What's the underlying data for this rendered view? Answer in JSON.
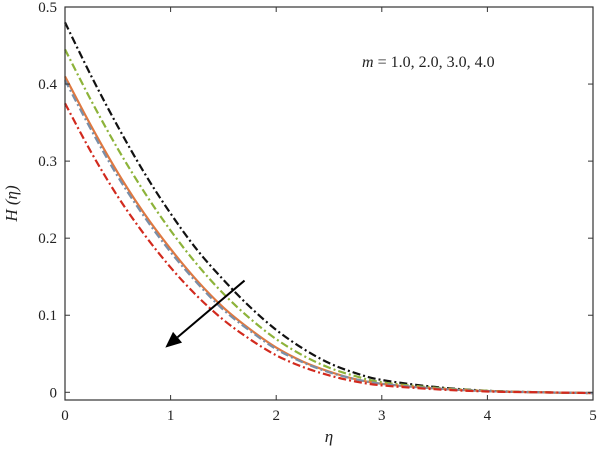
{
  "chart_data": {
    "type": "line",
    "title": "",
    "xlabel": "η",
    "ylabel": "H (η)",
    "xlim": [
      0,
      5
    ],
    "ylim": [
      -0.01,
      0.5
    ],
    "x_ticks": [
      0,
      1,
      2,
      3,
      4,
      5
    ],
    "y_ticks": [
      0,
      0.1,
      0.2,
      0.3,
      0.4,
      0.5
    ],
    "x_tick_labels": [
      "0",
      "1",
      "2",
      "3",
      "4",
      "5"
    ],
    "y_tick_labels": [
      "0",
      "0.1",
      "0.2",
      "0.3",
      "0.4",
      "0.5"
    ],
    "grid": false,
    "annotation": {
      "variable": "m",
      "text": " = 1.0, 2.0, 3.0, 4.0"
    },
    "arrow": {
      "from": [
        1.7,
        0.145
      ],
      "to": [
        0.95,
        0.058
      ]
    },
    "series": [
      {
        "color": "#111111",
        "dash": "8,3,2,3",
        "x": [
          0,
          0.25,
          0.5,
          0.75,
          1.0,
          1.25,
          1.5,
          1.75,
          2.0,
          2.25,
          2.5,
          2.75,
          3.0,
          3.5,
          4.0,
          4.5,
          5.0
        ],
        "y": [
          0.48,
          0.41,
          0.345,
          0.285,
          0.232,
          0.185,
          0.146,
          0.111,
          0.081,
          0.057,
          0.038,
          0.025,
          0.016,
          0.007,
          0.002,
          0.0,
          -0.001
        ]
      },
      {
        "color": "#8db33a",
        "dash": "8,3,2,3",
        "x": [
          0,
          0.25,
          0.5,
          0.75,
          1.0,
          1.25,
          1.5,
          1.75,
          2.0,
          2.25,
          2.5,
          2.75,
          3.0,
          3.5,
          4.0,
          4.5,
          5.0
        ],
        "y": [
          0.445,
          0.378,
          0.316,
          0.26,
          0.21,
          0.166,
          0.128,
          0.096,
          0.069,
          0.048,
          0.032,
          0.021,
          0.013,
          0.006,
          0.002,
          0.0,
          -0.001
        ]
      },
      {
        "color": "#e07840",
        "dash": "",
        "x": [
          0,
          0.25,
          0.5,
          0.75,
          1.0,
          1.25,
          1.5,
          1.75,
          2.0,
          2.25,
          2.5,
          2.75,
          3.0,
          3.5,
          4.0,
          4.5,
          5.0
        ],
        "y": [
          0.41,
          0.345,
          0.285,
          0.232,
          0.186,
          0.145,
          0.11,
          0.082,
          0.058,
          0.04,
          0.027,
          0.017,
          0.011,
          0.005,
          0.0015,
          0.0,
          -0.001
        ]
      },
      {
        "color": "#7a8fa8",
        "dash": "8,3,2,3",
        "x": [
          0,
          0.25,
          0.5,
          0.75,
          1.0,
          1.25,
          1.5,
          1.75,
          2.0,
          2.25,
          2.5,
          2.75,
          3.0,
          3.5,
          4.0,
          4.5,
          5.0
        ],
        "y": [
          0.405,
          0.34,
          0.28,
          0.228,
          0.182,
          0.142,
          0.107,
          0.08,
          0.056,
          0.039,
          0.026,
          0.017,
          0.011,
          0.005,
          0.0015,
          0.0,
          -0.001
        ]
      },
      {
        "color": "#d22a1e",
        "dash": "8,3,2,3",
        "x": [
          0,
          0.25,
          0.5,
          0.75,
          1.0,
          1.25,
          1.5,
          1.75,
          2.0,
          2.25,
          2.5,
          2.75,
          3.0,
          3.5,
          4.0,
          4.5,
          5.0
        ],
        "y": [
          0.375,
          0.311,
          0.254,
          0.205,
          0.162,
          0.125,
          0.094,
          0.069,
          0.048,
          0.033,
          0.022,
          0.014,
          0.009,
          0.004,
          0.001,
          0.0,
          -0.001
        ]
      }
    ]
  }
}
